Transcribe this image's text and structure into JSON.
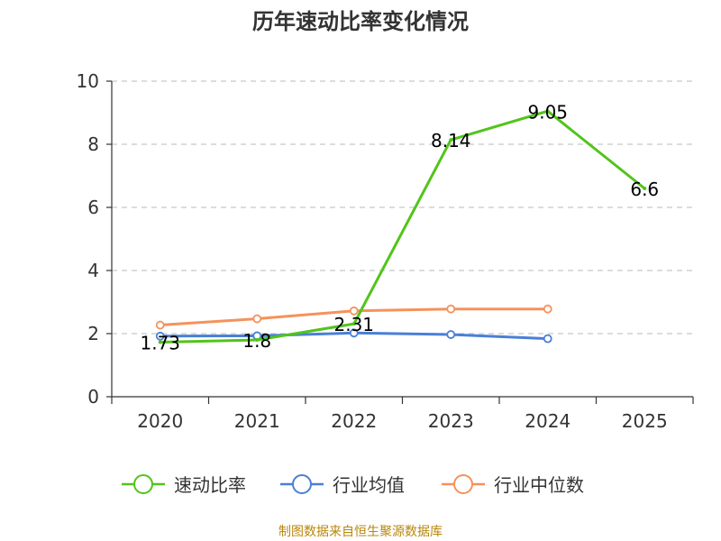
{
  "chart_data": {
    "type": "line",
    "title": "历年速动比率变化情况",
    "categories": [
      "2020",
      "2021",
      "2022",
      "2023",
      "2024",
      "2025"
    ],
    "ylim": [
      0,
      10
    ],
    "yticks": [
      0,
      2,
      4,
      6,
      8,
      10
    ],
    "grid": true,
    "legend_position": "bottom",
    "series": [
      {
        "name": "速动比率",
        "color": "#52c41a",
        "values": [
          1.73,
          1.8,
          2.31,
          8.14,
          9.05,
          6.6
        ],
        "labels": [
          "1.73",
          "1.8",
          "2.31",
          "8.14",
          "9.05",
          "6.6"
        ]
      },
      {
        "name": "行业均值",
        "color": "#4a7fd8",
        "values": [
          1.92,
          1.93,
          2.02,
          1.97,
          1.84,
          null
        ]
      },
      {
        "name": "行业中位数",
        "color": "#f5925a",
        "values": [
          2.27,
          2.47,
          2.72,
          2.78,
          2.78,
          null
        ]
      }
    ],
    "source": "制图数据来自恒生聚源数据库"
  }
}
